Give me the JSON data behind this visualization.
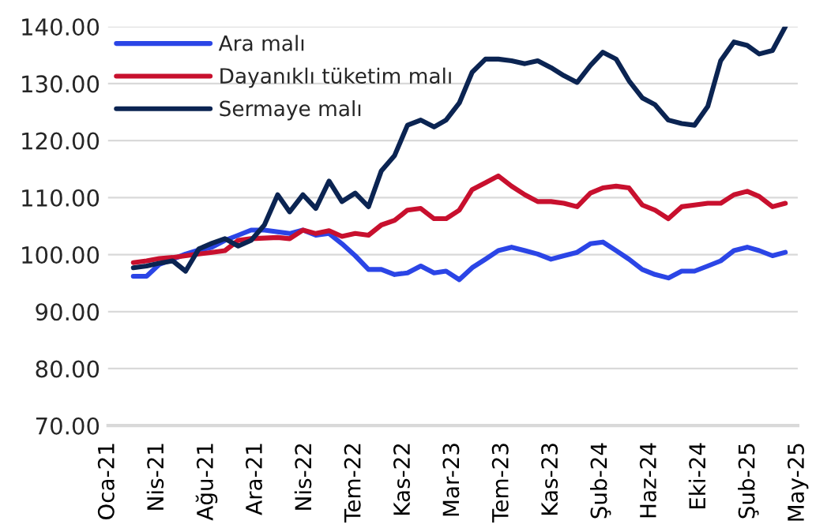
{
  "chart_data": {
    "type": "line",
    "x": [
      "2021-03",
      "2021-04",
      "2021-05",
      "2021-06",
      "2021-07",
      "2021-08",
      "2021-09",
      "2021-10",
      "2021-11",
      "2021-12",
      "2022-01",
      "2022-02",
      "2022-03",
      "2022-04",
      "2022-05",
      "2022-06",
      "2022-07",
      "2022-08",
      "2022-09",
      "2022-10",
      "2022-11",
      "2022-12",
      "2023-01",
      "2023-02",
      "2023-03",
      "2023-04",
      "2023-05",
      "2023-06",
      "2023-07",
      "2023-08",
      "2023-09",
      "2023-10",
      "2023-11",
      "2023-12",
      "2024-01",
      "2024-02",
      "2024-03",
      "2024-04",
      "2024-05",
      "2024-06",
      "2024-07",
      "2024-08",
      "2024-09",
      "2024-10",
      "2024-11",
      "2024-12",
      "2025-01",
      "2025-02",
      "2025-03",
      "2025-04",
      "2025-05"
    ],
    "series": [
      {
        "name": "Ara malı",
        "color": "#2b45e6",
        "values": [
          96.2,
          96.2,
          98.3,
          99.2,
          100.1,
          100.8,
          101.3,
          102.5,
          103.4,
          104.3,
          104.3,
          104,
          103.7,
          104.3,
          103.4,
          103.7,
          101.9,
          99.8,
          97.4,
          97.4,
          96.5,
          96.8,
          98,
          96.8,
          97.1,
          95.6,
          97.7,
          99.2,
          100.7,
          101.3,
          100.7,
          100.1,
          99.2,
          99.8,
          100.4,
          101.9,
          102.2,
          100.7,
          99.2,
          97.4,
          96.5,
          95.9,
          97.1,
          97.1,
          98,
          98.9,
          100.7,
          101.3,
          100.7,
          99.8,
          100.4
        ]
      },
      {
        "name": "Dayanıklı tüketim malı",
        "color": "#c8102e",
        "values": [
          98.6,
          98.9,
          99.3,
          99.5,
          99.8,
          100.1,
          100.4,
          100.7,
          102.5,
          102.8,
          102.9,
          103,
          102.8,
          104.3,
          103.7,
          104.2,
          103.2,
          103.7,
          103.4,
          105.2,
          106,
          107.8,
          108.1,
          106.3,
          106.3,
          107.8,
          111.4,
          112.6,
          113.8,
          112,
          110.5,
          109.3,
          109.3,
          109,
          108.4,
          110.8,
          111.7,
          112,
          111.7,
          108.7,
          107.8,
          106.3,
          108.4,
          108.7,
          109,
          109,
          110.5,
          111.1,
          110.2,
          108.4,
          109
        ]
      },
      {
        "name": "Sermaye malı",
        "color": "#0b2452",
        "values": [
          97.7,
          98,
          98.5,
          98.9,
          97.1,
          101,
          102,
          102.8,
          101.5,
          102.5,
          105.2,
          110.5,
          107.5,
          110.5,
          108.1,
          112.9,
          109.3,
          110.8,
          108.4,
          114.7,
          117.4,
          122.7,
          123.6,
          122.4,
          123.6,
          126.6,
          132,
          134.3,
          134.3,
          134,
          133.5,
          134,
          132.8,
          131.4,
          130.2,
          133.2,
          135.5,
          134.3,
          130.5,
          127.5,
          126.3,
          123.6,
          123,
          122.7,
          126,
          134,
          137.3,
          136.7,
          135.2,
          135.8,
          140
        ]
      }
    ],
    "xlim": [
      "2021-01-01",
      "2025-05-30"
    ],
    "xticks": [
      {
        "value": "2021-01-01",
        "label": "Oca-21"
      },
      {
        "value": "2021-04-26",
        "label": "Nis-21"
      },
      {
        "value": "2021-08-19",
        "label": "Ağu-21"
      },
      {
        "value": "2021-12-12",
        "label": "Ara-21"
      },
      {
        "value": "2022-04-06",
        "label": "Nis-22"
      },
      {
        "value": "2022-07-30",
        "label": "Tem-22"
      },
      {
        "value": "2022-11-22",
        "label": "Kas-22"
      },
      {
        "value": "2023-03-17",
        "label": "Mar-23"
      },
      {
        "value": "2023-07-10",
        "label": "Tem-23"
      },
      {
        "value": "2023-11-02",
        "label": "Kas-23"
      },
      {
        "value": "2024-02-25",
        "label": "Şub-24"
      },
      {
        "value": "2024-06-19",
        "label": "Haz-24"
      },
      {
        "value": "2024-10-12",
        "label": "Eki-24"
      },
      {
        "value": "2025-02-04",
        "label": "Şub-25"
      },
      {
        "value": "2025-05-30",
        "label": "May-25"
      }
    ],
    "ylim": [
      70,
      140
    ],
    "yticks": [
      {
        "value": 70,
        "label": "70.00"
      },
      {
        "value": 80,
        "label": "80.00"
      },
      {
        "value": 90,
        "label": "90.00"
      },
      {
        "value": 100,
        "label": "100.00"
      },
      {
        "value": 110,
        "label": "110.00"
      },
      {
        "value": 120,
        "label": "120.00"
      },
      {
        "value": 130,
        "label": "130.00"
      },
      {
        "value": 140,
        "label": "140.00"
      }
    ],
    "grid": "y",
    "legend": "top left",
    "marker": "none",
    "line_style": "solid"
  }
}
